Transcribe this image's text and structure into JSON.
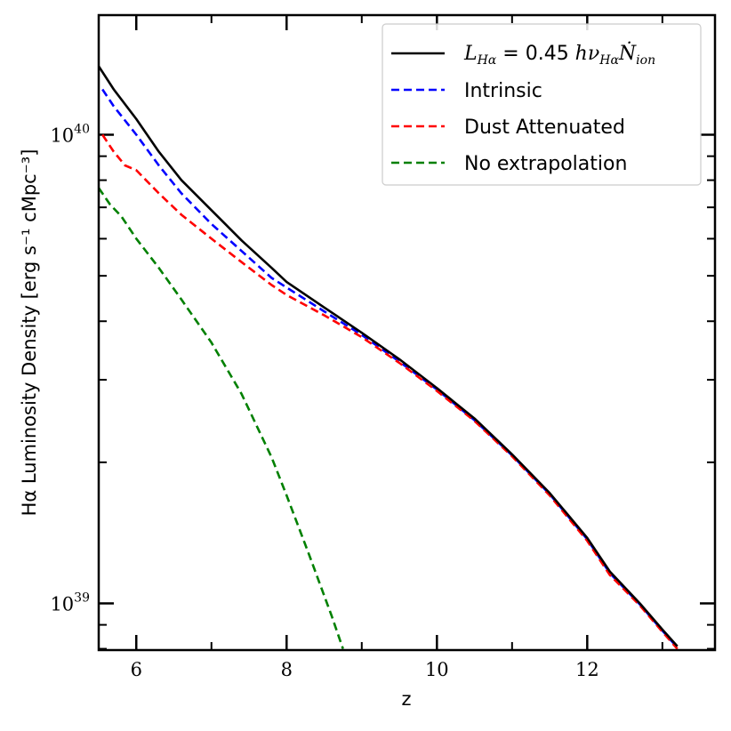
{
  "chart_data": {
    "type": "line",
    "title": "",
    "xlabel": "z",
    "ylabel": "Hα Luminosity Density [erg s⁻¹ cMpc⁻³]",
    "xlim": [
      5.5,
      13.7
    ],
    "ylim": [
      7.95e+38,
      1.8e+40
    ],
    "yscale": "log",
    "xticks": [
      6,
      8,
      10,
      12
    ],
    "xtick_labels": [
      "6",
      "8",
      "10",
      "12"
    ],
    "yticks_major": [
      1e+39,
      1e+40
    ],
    "ytick_labels": [
      {
        "base": "10",
        "exp": "39"
      },
      {
        "base": "10",
        "exp": "40"
      }
    ],
    "legend_position": "top-right",
    "series": [
      {
        "name": "L_Hα = 0.45 hν_Hα Ṅ_ion",
        "legend_label": {
          "lhs": "L",
          "lhs_sub": "Hα",
          "eq": " = ",
          "coef": "0.45",
          "rhs": " hν",
          "rhs_sub": "Hα",
          "ndot": "Ṅ",
          "ndot_sub": "ion"
        },
        "color": "#000000",
        "dash": "solid",
        "x": [
          5.5,
          5.7,
          6.0,
          6.3,
          6.6,
          7.0,
          7.4,
          7.8,
          8.0,
          8.5,
          9.0,
          9.5,
          10.0,
          10.5,
          11.0,
          11.5,
          12.0,
          12.3,
          12.7,
          13.0,
          13.2
        ],
        "y": [
          1.4e+40,
          1.25e+40,
          1.08e+40,
          9.2e+39,
          8e+39,
          6.9e+39,
          5.95e+39,
          5.2e+39,
          4.85e+39,
          4.28e+39,
          3.78e+39,
          3.32e+39,
          2.88e+39,
          2.48e+39,
          2.08e+39,
          1.72e+39,
          1.38e+39,
          1.17e+39,
          1e+39,
          8.8e+38,
          8.1e+38
        ]
      },
      {
        "name": "Intrinsic",
        "color": "#0000ff",
        "dash": "dashed",
        "x": [
          5.55,
          5.7,
          6.0,
          6.3,
          6.6,
          7.0,
          7.4,
          7.8,
          8.0,
          8.5,
          9.0,
          9.5,
          10.0,
          10.5,
          11.0,
          11.5,
          12.0,
          12.3,
          12.7,
          13.0,
          13.2
        ],
        "y": [
          1.25e+40,
          1.15e+40,
          1e+40,
          8.6e+39,
          7.5e+39,
          6.45e+39,
          5.65e+39,
          4.95e+39,
          4.72e+39,
          4.2e+39,
          3.74e+39,
          3.28e+39,
          2.86e+39,
          2.46e+39,
          2.07e+39,
          1.71e+39,
          1.37e+39,
          1.16e+39,
          9.95e+38,
          8.75e+38,
          8.05e+38
        ]
      },
      {
        "name": "Dust Attenuated",
        "color": "#ff0000",
        "dash": "dashed",
        "x": [
          5.55,
          5.7,
          5.85,
          6.0,
          6.3,
          6.6,
          7.0,
          7.4,
          7.8,
          8.0,
          8.5,
          9.0,
          9.5,
          10.0,
          10.5,
          11.0,
          11.5,
          12.0,
          12.3,
          12.7,
          13.0,
          13.2
        ],
        "y": [
          1e+40,
          9.2e+39,
          8.6e+39,
          8.4e+39,
          7.5e+39,
          6.75e+39,
          6e+39,
          5.35e+39,
          4.78e+39,
          4.55e+39,
          4.12e+39,
          3.7e+39,
          3.26e+39,
          2.84e+39,
          2.45e+39,
          2.06e+39,
          1.7e+39,
          1.36e+39,
          1.15e+39,
          9.9e+38,
          8.7e+38,
          8e+38
        ]
      },
      {
        "name": "No extrapolation",
        "color": "#008000",
        "dash": "dashed",
        "x": [
          5.5,
          5.65,
          5.8,
          6.0,
          6.3,
          6.6,
          7.0,
          7.4,
          7.8,
          8.0,
          8.3,
          8.6,
          8.75
        ],
        "y": [
          7.7e+39,
          7.1e+39,
          6.7e+39,
          6e+39,
          5.2e+39,
          4.45e+39,
          3.6e+39,
          2.8e+39,
          2.05e+39,
          1.7e+39,
          1.27e+39,
          9.4e+38,
          8e+38
        ]
      }
    ]
  }
}
